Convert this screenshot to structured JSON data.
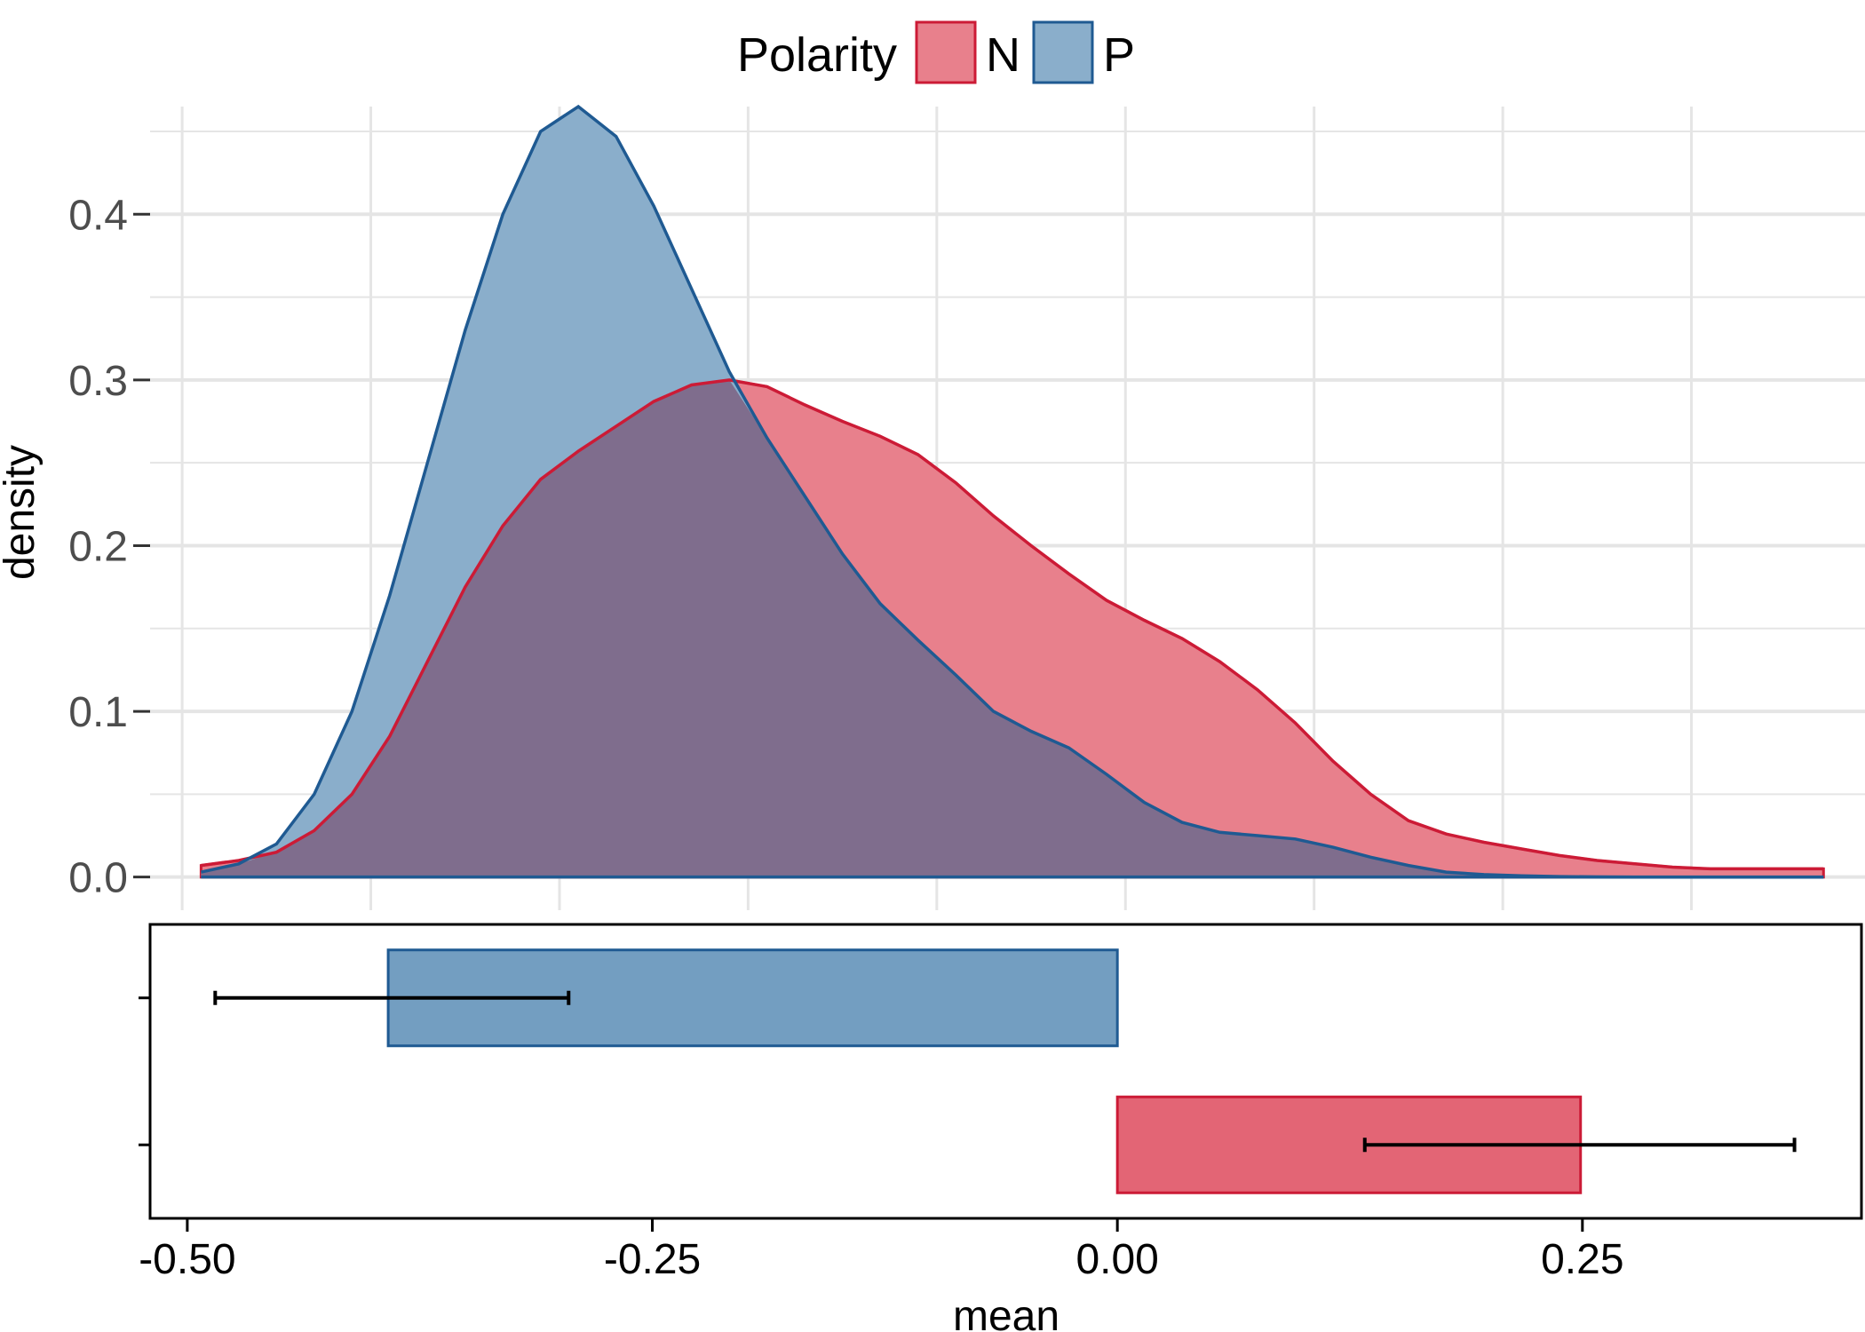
{
  "legend": {
    "title": "Polarity",
    "items": [
      {
        "key": "N",
        "label": "N",
        "fill": "#E8808C",
        "stroke": "#CC1B36"
      },
      {
        "key": "P",
        "label": "P",
        "fill": "#8AAECB",
        "stroke": "#1F5A92"
      }
    ]
  },
  "colors": {
    "N_fill": "#E8808C",
    "N_stroke": "#CC1B36",
    "N_bar": "#E36575",
    "P_fill": "#8AAECB",
    "P_stroke": "#1F5A92",
    "P_bar": "#739EC1",
    "overlap": "#7F6D8D",
    "grid": "#E5E5E5"
  },
  "chart_data": [
    {
      "type": "area",
      "subtype": "density",
      "ylabel": "density",
      "xlim": [
        -0.517,
        0.392
      ],
      "ylim": [
        -0.02,
        0.465
      ],
      "y_ticks": [
        0.0,
        0.1,
        0.2,
        0.3,
        0.4
      ],
      "y_tick_labels": [
        "0.0",
        "0.1",
        "0.2",
        "0.3",
        "0.4"
      ],
      "x_grid": [
        -0.5,
        -0.4,
        -0.3,
        -0.2,
        -0.1,
        0.0,
        0.1,
        0.2,
        0.3
      ],
      "grid": true,
      "series": [
        {
          "name": "N",
          "x": [
            -0.49,
            -0.47,
            -0.45,
            -0.43,
            -0.41,
            -0.39,
            -0.37,
            -0.35,
            -0.33,
            -0.31,
            -0.29,
            -0.27,
            -0.25,
            -0.23,
            -0.21,
            -0.19,
            -0.17,
            -0.15,
            -0.13,
            -0.11,
            -0.09,
            -0.07,
            -0.05,
            -0.03,
            -0.01,
            0.01,
            0.03,
            0.05,
            0.07,
            0.09,
            0.11,
            0.13,
            0.15,
            0.17,
            0.19,
            0.21,
            0.23,
            0.25,
            0.27,
            0.29,
            0.31,
            0.33,
            0.35,
            0.37
          ],
          "y": [
            0.007,
            0.01,
            0.015,
            0.028,
            0.05,
            0.085,
            0.13,
            0.175,
            0.212,
            0.24,
            0.257,
            0.272,
            0.287,
            0.297,
            0.3,
            0.296,
            0.285,
            0.275,
            0.266,
            0.255,
            0.238,
            0.218,
            0.2,
            0.183,
            0.167,
            0.155,
            0.144,
            0.13,
            0.113,
            0.093,
            0.07,
            0.05,
            0.034,
            0.026,
            0.021,
            0.017,
            0.013,
            0.01,
            0.008,
            0.006,
            0.005,
            0.005,
            0.005,
            0.005
          ]
        },
        {
          "name": "P",
          "x": [
            -0.49,
            -0.47,
            -0.45,
            -0.43,
            -0.41,
            -0.39,
            -0.37,
            -0.35,
            -0.33,
            -0.31,
            -0.29,
            -0.27,
            -0.25,
            -0.23,
            -0.21,
            -0.19,
            -0.17,
            -0.15,
            -0.13,
            -0.11,
            -0.09,
            -0.07,
            -0.05,
            -0.03,
            -0.01,
            0.01,
            0.03,
            0.05,
            0.07,
            0.09,
            0.11,
            0.13,
            0.15,
            0.17,
            0.19,
            0.21,
            0.23,
            0.25,
            0.27,
            0.29,
            0.31,
            0.33,
            0.35,
            0.37
          ],
          "y": [
            0.003,
            0.008,
            0.02,
            0.05,
            0.1,
            0.17,
            0.25,
            0.33,
            0.4,
            0.45,
            0.465,
            0.447,
            0.405,
            0.355,
            0.305,
            0.265,
            0.23,
            0.195,
            0.165,
            0.143,
            0.122,
            0.1,
            0.088,
            0.078,
            0.062,
            0.045,
            0.033,
            0.027,
            0.025,
            0.023,
            0.018,
            0.012,
            0.007,
            0.003,
            0.0015,
            0.0008,
            0.0003,
            0.0001,
            0.0,
            0.0,
            0.0,
            0.0,
            0.0,
            0.0
          ]
        }
      ]
    },
    {
      "type": "bar",
      "orientation": "horizontal",
      "xlabel": "mean",
      "xlim": [
        -0.52,
        0.4
      ],
      "x_ticks": [
        -0.5,
        -0.25,
        0.0,
        0.25
      ],
      "x_tick_labels": [
        "-0.50",
        "-0.25",
        "0.00",
        "0.25"
      ],
      "grid": false,
      "categories": [
        "P",
        "N"
      ],
      "values": [
        -0.392,
        0.249
      ],
      "error_low": [
        -0.485,
        0.133
      ],
      "error_high": [
        -0.295,
        0.364
      ]
    }
  ]
}
